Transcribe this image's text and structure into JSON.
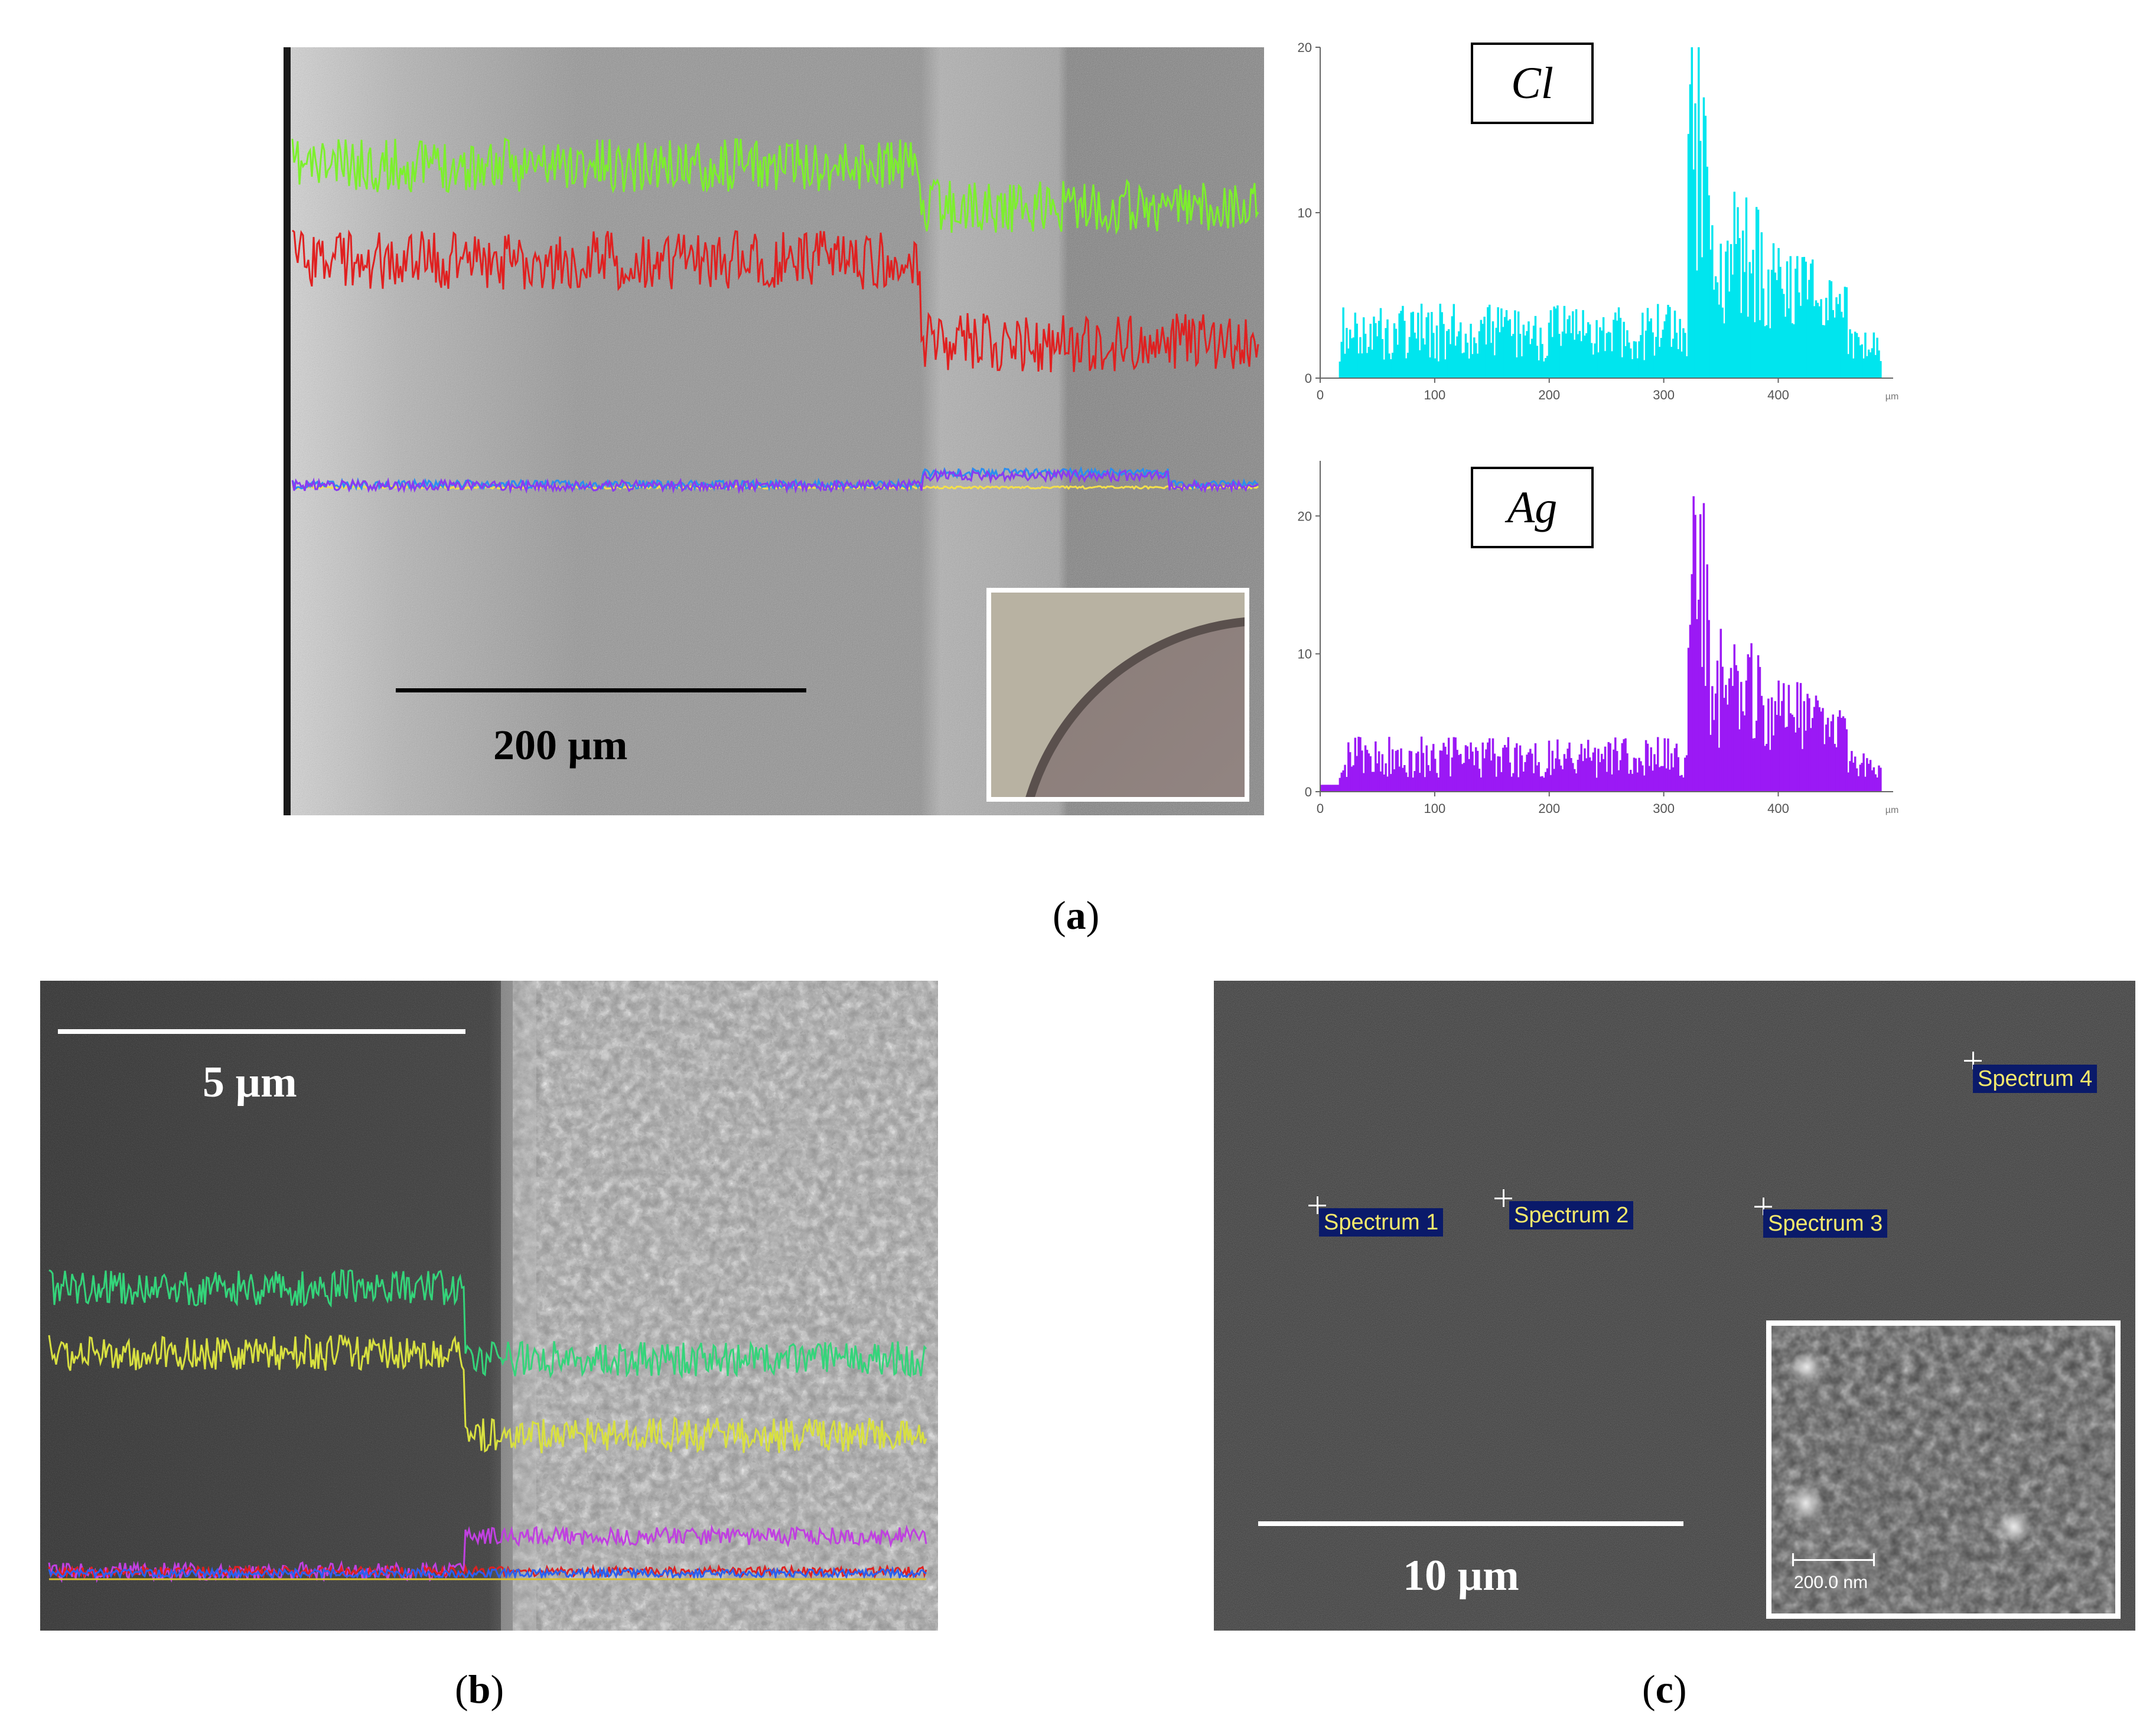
{
  "panel_a": {
    "caption": "a",
    "scale_bar_label": "200 µm",
    "histograms": [
      {
        "element": "Cl",
        "color": "#00e5ee",
        "yticks": [
          "0",
          "10",
          "20"
        ],
        "xticks": [
          "0",
          "100",
          "200",
          "300",
          "400"
        ],
        "unit": "µm",
        "ymax": 20,
        "xmax": 490
      },
      {
        "element": "Ag",
        "color": "#9b19f5",
        "yticks": [
          "0",
          "10",
          "20"
        ],
        "xticks": [
          "0",
          "100",
          "200",
          "300",
          "400"
        ],
        "unit": "µm",
        "ymax": 24,
        "xmax": 490
      }
    ]
  },
  "panel_b": {
    "caption": "b",
    "scale_bar_label": "5 µm"
  },
  "panel_c": {
    "caption": "c",
    "scale_bar_label": "10 µm",
    "spectra": [
      "Spectrum 1",
      "Spectrum 2",
      "Spectrum 3",
      "Spectrum 4"
    ],
    "inset_scale_label": "200.0 nm"
  }
}
